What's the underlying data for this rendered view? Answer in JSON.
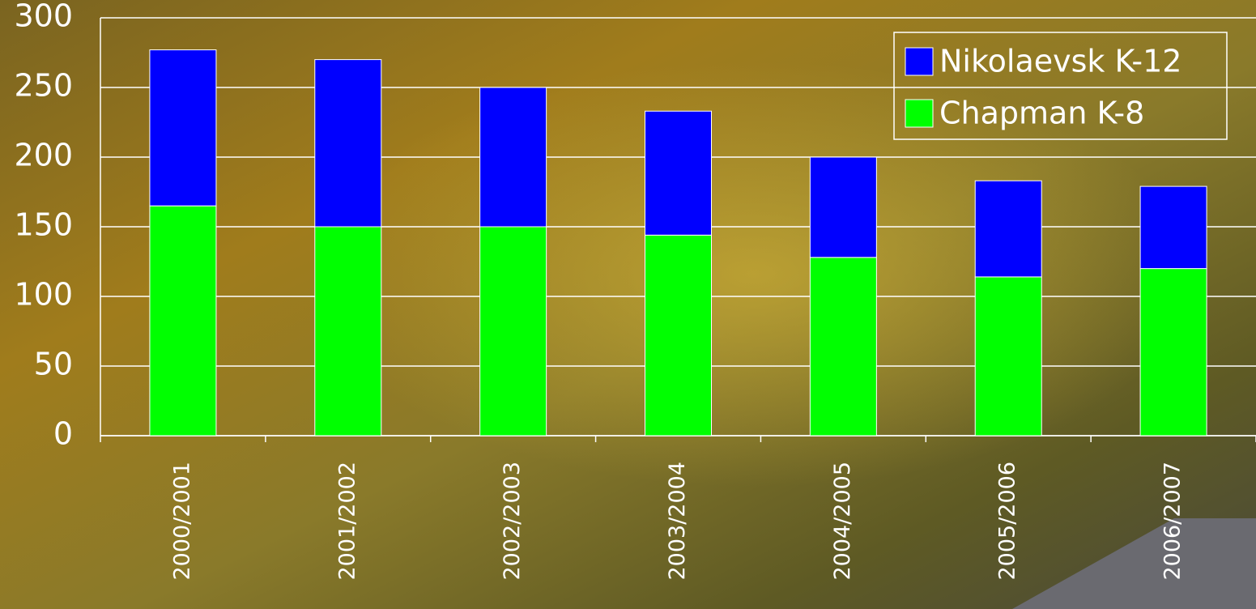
{
  "chart_data": {
    "type": "stacked_bar",
    "categories": [
      "2000/2001",
      "2001/2002",
      "2002/2003",
      "2003/2004",
      "2004/2005",
      "2005/2006",
      "2006/2007"
    ],
    "series": [
      {
        "name": "Chapman K-8",
        "color": "#00ff00",
        "values": [
          165,
          150,
          150,
          144,
          128,
          114,
          120
        ]
      },
      {
        "name": "Nikolaevsk K-12",
        "color": "#0000ff",
        "values": [
          112,
          120,
          100,
          89,
          72,
          69,
          59
        ]
      }
    ],
    "ylim": [
      0,
      300
    ],
    "yticks": [
      0,
      50,
      100,
      150,
      200,
      250,
      300
    ],
    "grid": true,
    "legend": "top-right"
  }
}
